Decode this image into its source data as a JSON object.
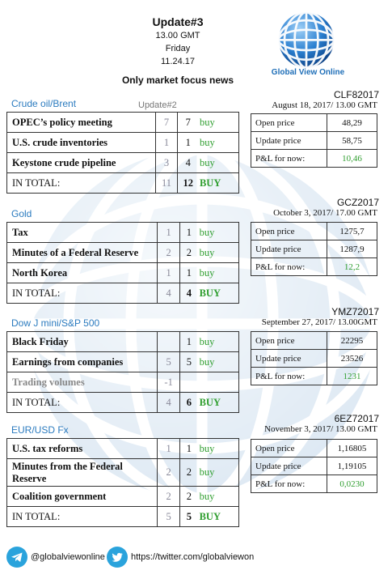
{
  "header": {
    "title": "Update#3",
    "time": "13.00 GMT",
    "day": "Friday",
    "date": "11.24.17",
    "subtitle": "Only market focus news"
  },
  "brand": {
    "name": "Global View Online"
  },
  "update_label": "Update#2",
  "sections": [
    {
      "label": "Crude oil/Brent",
      "rows": [
        {
          "name": "OPEC’s policy meeting",
          "prev": "7",
          "curr": "7",
          "signal": "buy"
        },
        {
          "name": "U.S. crude inventories",
          "prev": "1",
          "curr": "1",
          "signal": "buy"
        },
        {
          "name": "Keystone crude pipeline",
          "prev": "3",
          "curr": "4",
          "signal": "buy"
        }
      ],
      "total": {
        "name": "IN TOTAL:",
        "prev": "11",
        "curr": "12",
        "signal": "BUY"
      },
      "contract": {
        "code": "CLF82017",
        "date": "August 18, 2017/ 13.00 GMT",
        "open_label": "Open price",
        "open": "48,29",
        "update_label": "Update price",
        "update": "58,75",
        "pl_label": "P&L for now:",
        "pl": "10,46"
      }
    },
    {
      "label": "Gold",
      "rows": [
        {
          "name": "Tax",
          "prev": "1",
          "curr": "1",
          "signal": "buy"
        },
        {
          "name": "Minutes of a Federal Reserve",
          "prev": "2",
          "curr": "2",
          "signal": "buy"
        },
        {
          "name": "North Korea",
          "prev": "1",
          "curr": "1",
          "signal": "buy"
        }
      ],
      "total": {
        "name": "IN TOTAL:",
        "prev": "4",
        "curr": "4",
        "signal": "BUY"
      },
      "contract": {
        "code": "GCZ2017",
        "date": "October 3, 2017/ 17.00 GMT",
        "open_label": "Open price",
        "open": "1275,7",
        "update_label": "Update price",
        "update": "1287,9",
        "pl_label": "P&L for now:",
        "pl": "12,2"
      }
    },
    {
      "label": "Dow J mini/S&P 500",
      "rows": [
        {
          "name": "Black Friday",
          "prev": "",
          "curr": "1",
          "signal": "buy"
        },
        {
          "name": "Earnings from companies",
          "prev": "5",
          "curr": "5",
          "signal": "buy"
        },
        {
          "name": "Trading volumes",
          "prev": "-1",
          "curr": "",
          "signal": ""
        }
      ],
      "total": {
        "name": "IN TOTAL:",
        "prev": "4",
        "curr": "6",
        "signal": "BUY"
      },
      "contract": {
        "code": "YMZ72017",
        "date": "September 27, 2017/ 13.00GMT",
        "open_label": "Open price",
        "open": "22295",
        "update_label": "Update price",
        "update": "23526",
        "pl_label": "P&L for now:",
        "pl": "1231"
      }
    },
    {
      "label": "EUR/USD Fx",
      "rows": [
        {
          "name": "U.S. tax reforms",
          "prev": "1",
          "curr": "1",
          "signal": "buy"
        },
        {
          "name": "Minutes from the Federal Reserve",
          "prev": "2",
          "curr": "2",
          "signal": "buy"
        },
        {
          "name": "Coalition government",
          "prev": "2",
          "curr": "2",
          "signal": "buy"
        }
      ],
      "total": {
        "name": "IN TOTAL:",
        "prev": "5",
        "curr": "5",
        "signal": "BUY"
      },
      "contract": {
        "code": "6EZ72017",
        "date": "November 3, 2017/ 13.00 GMT",
        "open_label": "Open price",
        "open": "1,16805",
        "update_label": "Update price",
        "update": "1,19105",
        "pl_label": "P&L for now:",
        "pl": "0,0230"
      }
    }
  ],
  "footer": {
    "telegram": "@globalviewonline",
    "twitter": "https://twitter.com/globalviewon"
  },
  "colors": {
    "accent": "#2b7bbf",
    "green": "#2f9e2f",
    "grey": "#8a8a9a"
  },
  "icons": {
    "logo": "globe-icon",
    "telegram": "telegram-icon",
    "twitter": "twitter-icon"
  }
}
